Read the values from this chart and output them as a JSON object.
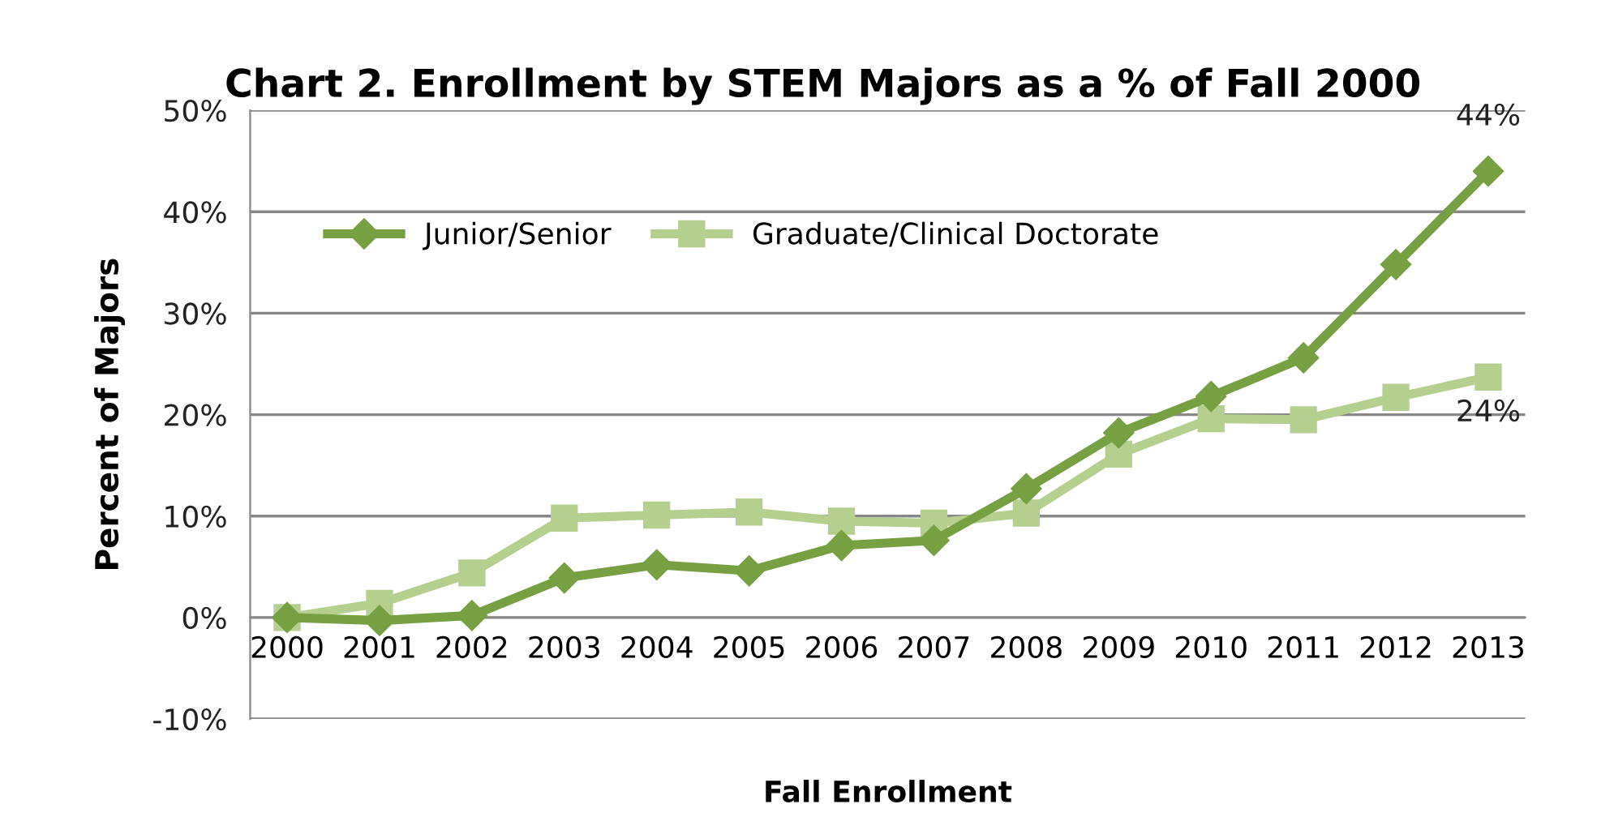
{
  "chart_data": {
    "type": "line",
    "title": "Chart 2. Enrollment by STEM Majors as a % of Fall 2000",
    "xlabel": "Fall Enrollment",
    "ylabel": "Percent of Majors",
    "categories": [
      "2000",
      "2001",
      "2002",
      "2003",
      "2004",
      "2005",
      "2006",
      "2007",
      "2008",
      "2009",
      "2010",
      "2011",
      "2012",
      "2013"
    ],
    "series": [
      {
        "name": "Junior/Senior",
        "color": "#77a043",
        "marker": "diamond",
        "values": [
          0,
          -0.3,
          0.2,
          3.9,
          5.2,
          4.6,
          7.1,
          7.6,
          12.7,
          18.2,
          21.8,
          25.6,
          34.8,
          44
        ],
        "value_labels": [
          null,
          null,
          null,
          null,
          null,
          null,
          null,
          null,
          null,
          null,
          null,
          null,
          null,
          "44%"
        ]
      },
      {
        "name": "Graduate/Clinical Doctorate",
        "color": "#b5cf8e",
        "marker": "square",
        "values": [
          0,
          1.4,
          4.4,
          9.8,
          10.1,
          10.4,
          9.5,
          9.3,
          10.3,
          16.1,
          19.6,
          19.5,
          21.7,
          23.7
        ],
        "value_labels": [
          null,
          null,
          null,
          null,
          null,
          null,
          null,
          null,
          null,
          null,
          null,
          null,
          null,
          "24%"
        ]
      }
    ],
    "ylim": [
      -10,
      50
    ],
    "yticks": [
      {
        "value": -10,
        "label": "-10%"
      },
      {
        "value": 0,
        "label": "0%"
      },
      {
        "value": 10,
        "label": "10%"
      },
      {
        "value": 20,
        "label": "20%"
      },
      {
        "value": 30,
        "label": "30%"
      },
      {
        "value": 40,
        "label": "40%"
      },
      {
        "value": 50,
        "label": "50%"
      }
    ],
    "grid": "y",
    "legend": "top left",
    "line_style": "solid"
  }
}
